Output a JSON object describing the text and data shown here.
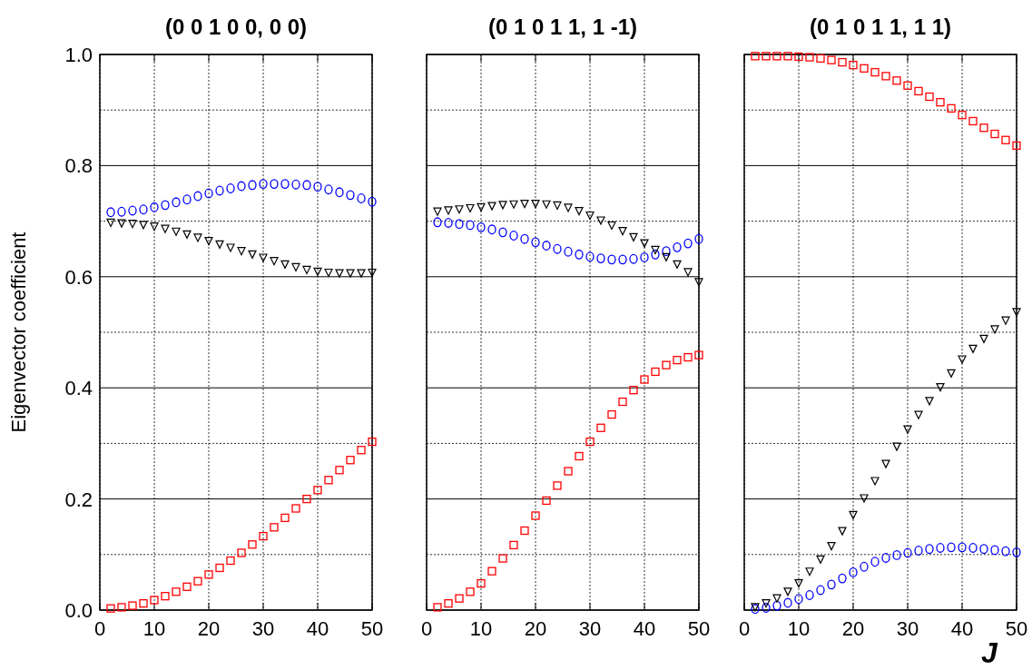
{
  "chart_data": [
    {
      "type": "scatter",
      "title": "(0 0 1 0 0, 0 0)",
      "ylabel": "Eigenvector coefficient",
      "x": [
        2,
        4,
        6,
        8,
        10,
        12,
        14,
        16,
        18,
        20,
        22,
        24,
        26,
        28,
        30,
        32,
        34,
        36,
        38,
        40,
        42,
        44,
        46,
        48,
        50
      ],
      "xlim": [
        0,
        50
      ],
      "xticks": [
        0,
        10,
        20,
        30,
        40,
        50
      ],
      "ylim": [
        0,
        1
      ],
      "yticks": [
        {
          "value": 0,
          "label": "0.0"
        },
        {
          "value": 0.1,
          "label": null
        },
        0.2,
        {
          "value": 0.3,
          "label": null
        },
        0.4,
        {
          "value": 0.5,
          "label": null
        },
        0.6,
        {
          "value": 0.7,
          "label": null
        },
        0.8,
        {
          "value": 0.9,
          "label": null
        },
        {
          "value": 1,
          "label": "1.0"
        }
      ],
      "grid": true,
      "series": [
        {
          "color": "#ff0000",
          "marker": "square",
          "values": [
            0.003,
            0.005,
            0.008,
            0.012,
            0.018,
            0.025,
            0.033,
            0.042,
            0.052,
            0.064,
            0.076,
            0.089,
            0.103,
            0.118,
            0.133,
            0.149,
            0.166,
            0.183,
            0.2,
            0.216,
            0.234,
            0.252,
            0.27,
            0.288,
            0.303
          ]
        },
        {
          "color": "#0000ff",
          "marker": "circle",
          "values": [
            0.716,
            0.717,
            0.719,
            0.721,
            0.725,
            0.729,
            0.734,
            0.739,
            0.745,
            0.75,
            0.755,
            0.759,
            0.763,
            0.765,
            0.767,
            0.767,
            0.767,
            0.766,
            0.765,
            0.762,
            0.757,
            0.752,
            0.747,
            0.741,
            0.735
          ]
        },
        {
          "color": "#000000",
          "marker": "triangle",
          "values": [
            0.697,
            0.696,
            0.695,
            0.693,
            0.69,
            0.686,
            0.681,
            0.676,
            0.67,
            0.664,
            0.658,
            0.652,
            0.646,
            0.64,
            0.634,
            0.628,
            0.622,
            0.617,
            0.612,
            0.609,
            0.607,
            0.606,
            0.606,
            0.606,
            0.607
          ]
        }
      ]
    },
    {
      "type": "scatter",
      "title": "(0 1 0 1 1, 1 -1)",
      "tick_labels": "x",
      "x": [
        2,
        4,
        6,
        8,
        10,
        12,
        14,
        16,
        18,
        20,
        22,
        24,
        26,
        28,
        30,
        32,
        34,
        36,
        38,
        40,
        42,
        44,
        46,
        48,
        50
      ],
      "xlim": [
        0,
        50
      ],
      "xticks": [
        0,
        10,
        20,
        30,
        40,
        50
      ],
      "ylim": [
        0,
        1
      ],
      "grid": true,
      "series": [
        {
          "color": "#ff0000",
          "marker": "square",
          "values": [
            0.005,
            0.012,
            0.021,
            0.033,
            0.048,
            0.07,
            0.093,
            0.117,
            0.143,
            0.17,
            0.197,
            0.224,
            0.25,
            0.277,
            0.303,
            0.328,
            0.352,
            0.375,
            0.396,
            0.415,
            0.429,
            0.441,
            0.45,
            0.455,
            0.459
          ]
        },
        {
          "color": "#0000ff",
          "marker": "circle",
          "values": [
            0.698,
            0.697,
            0.695,
            0.693,
            0.689,
            0.685,
            0.68,
            0.674,
            0.668,
            0.662,
            0.656,
            0.65,
            0.645,
            0.64,
            0.636,
            0.633,
            0.631,
            0.631,
            0.632,
            0.635,
            0.64,
            0.646,
            0.653,
            0.66,
            0.668
          ]
        },
        {
          "color": "#000000",
          "marker": "triangle",
          "values": [
            0.717,
            0.719,
            0.721,
            0.723,
            0.725,
            0.727,
            0.729,
            0.73,
            0.731,
            0.731,
            0.73,
            0.728,
            0.724,
            0.718,
            0.71,
            0.701,
            0.692,
            0.682,
            0.671,
            0.66,
            0.648,
            0.635,
            0.622,
            0.608,
            0.59
          ]
        }
      ]
    },
    {
      "type": "scatter",
      "title": "(0 1 0 1 1, 1 1)",
      "xlabel": "J",
      "tick_labels": "x",
      "x": [
        2,
        4,
        6,
        8,
        10,
        12,
        14,
        16,
        18,
        20,
        22,
        24,
        26,
        28,
        30,
        32,
        34,
        36,
        38,
        40,
        42,
        44,
        46,
        48,
        50
      ],
      "xlim": [
        0,
        50
      ],
      "xticks": [
        0,
        10,
        20,
        30,
        40,
        50
      ],
      "ylim": [
        0,
        1
      ],
      "grid": true,
      "series": [
        {
          "color": "#ff0000",
          "marker": "square",
          "values": [
            0.997,
            0.997,
            0.997,
            0.997,
            0.996,
            0.995,
            0.993,
            0.99,
            0.986,
            0.981,
            0.975,
            0.968,
            0.961,
            0.953,
            0.944,
            0.934,
            0.924,
            0.914,
            0.903,
            0.891,
            0.88,
            0.868,
            0.857,
            0.846,
            0.836
          ]
        },
        {
          "color": "#0000ff",
          "marker": "circle",
          "values": [
            0.002,
            0.004,
            0.008,
            0.013,
            0.02,
            0.027,
            0.036,
            0.046,
            0.057,
            0.068,
            0.078,
            0.087,
            0.094,
            0.099,
            0.103,
            0.107,
            0.11,
            0.112,
            0.113,
            0.113,
            0.112,
            0.11,
            0.108,
            0.106,
            0.104
          ]
        },
        {
          "color": "#000000",
          "marker": "triangle",
          "values": [
            0.005,
            0.012,
            0.021,
            0.033,
            0.048,
            0.069,
            0.091,
            0.115,
            0.142,
            0.171,
            0.201,
            0.232,
            0.263,
            0.294,
            0.325,
            0.351,
            0.376,
            0.401,
            0.426,
            0.451,
            0.47,
            0.488,
            0.505,
            0.521,
            0.536
          ]
        }
      ]
    }
  ]
}
